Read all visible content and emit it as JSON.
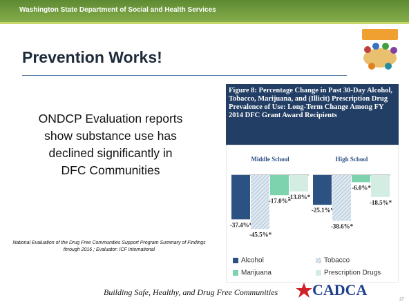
{
  "header": {
    "org": "Washington State Department of Social and Health Services"
  },
  "title": "Prevention Works!",
  "body": "ONDCP Evaluation reports show substance use has declined significantly in DFC Communities",
  "citation": "National Evaluation of the Drug Free Communities Support Program Summary of Findings through 2016 ; Evaluator: ICF International",
  "chart_data": {
    "type": "bar",
    "title": "Figure 8: Percentage Change in Past 30-Day Alcohol, Tobacco, Marijuana, and (Illicit) Prescription Drug Prevalence of Use: Long-Term Change Among FY 2014 DFC Grant Award Recipients",
    "categories": [
      "Middle School",
      "High School"
    ],
    "series": [
      {
        "name": "Alcohol",
        "color": "#2c5283",
        "values": [
          -37.4,
          -25.1
        ],
        "value_labels": [
          "-37.4%*",
          "-25.1%*"
        ]
      },
      {
        "name": "Tobacco",
        "color": "#c9d9e6",
        "values": [
          -45.5,
          -38.6
        ],
        "value_labels": [
          "-45.5%*",
          "-38.6%*"
        ]
      },
      {
        "name": "Marijuana",
        "color": "#7dd3ae",
        "values": [
          -17.0,
          -6.0
        ],
        "value_labels": [
          "-17.0%*",
          "-6.0%*"
        ]
      },
      {
        "name": "Prescription Drugs",
        "color": "#d3ede2",
        "values": [
          -13.8,
          -18.5
        ],
        "value_labels": [
          "-13.8%*",
          "-18.5%*"
        ]
      }
    ]
  },
  "footer": {
    "tagline": "Building Safe, Healthy, and Drug Free Communities",
    "logo": "CADCA",
    "page": "27"
  }
}
